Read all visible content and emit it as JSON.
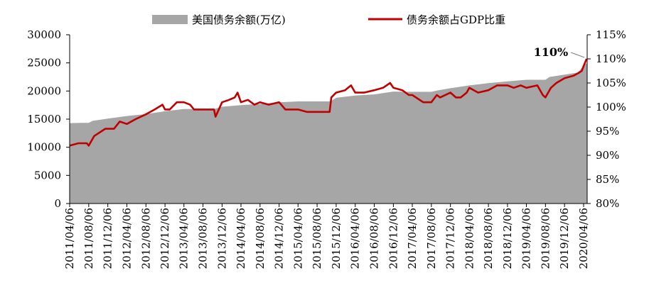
{
  "chart_data": {
    "type": "area",
    "title": "",
    "legend": {
      "placement": "top",
      "items": [
        {
          "label": "美国债务余额(万亿)",
          "color": "#a6a6a6",
          "kind": "area"
        },
        {
          "label": "债务余额占GDP比重",
          "color": "#c00000",
          "kind": "line"
        }
      ]
    },
    "y_left": {
      "ticks": [
        "30000",
        "25000",
        "20000",
        "15000",
        "10000",
        "5000",
        "0"
      ],
      "ylim": [
        0,
        30000
      ]
    },
    "y_right": {
      "ticks": [
        "115%",
        "110%",
        "105%",
        "100%",
        "95%",
        "90%",
        "85%",
        "80%"
      ],
      "ylim": [
        80,
        115
      ]
    },
    "x_tick_labels": [
      "2011/04/06",
      "2011/08/06",
      "2011/12/06",
      "2012/04/06",
      "2012/08/06",
      "2012/12/06",
      "2013/04/06",
      "2013/08/06",
      "2013/12/06",
      "2014/04/06",
      "2014/08/06",
      "2014/12/06",
      "2015/04/06",
      "2015/08/06",
      "2015/12/06",
      "2016/04/06",
      "2016/08/06",
      "2016/12/06",
      "2017/04/06",
      "2017/08/06",
      "2017/12/06",
      "2018/04/06",
      "2018/08/06",
      "2018/12/06",
      "2019/04/06",
      "2019/08/06",
      "2019/12/06",
      "2020/04/06"
    ],
    "series": [
      {
        "name": "美国债务余额(万亿)",
        "axis": "left",
        "color": "#a6a6a6",
        "x": [
          "2011/04/06",
          "2011/06/15",
          "2011/08/06",
          "2011/09/01",
          "2011/12/06",
          "2012/04/06",
          "2012/08/06",
          "2012/12/06",
          "2013/04/06",
          "2013/08/06",
          "2013/10/15",
          "2013/12/06",
          "2014/04/06",
          "2014/08/06",
          "2014/12/06",
          "2015/04/06",
          "2015/08/06",
          "2015/11/01",
          "2015/12/06",
          "2016/04/06",
          "2016/08/06",
          "2016/12/06",
          "2017/04/06",
          "2017/08/06",
          "2017/09/15",
          "2017/12/06",
          "2018/04/06",
          "2018/08/06",
          "2018/12/06",
          "2019/04/06",
          "2019/08/06",
          "2019/09/01",
          "2019/12/06",
          "2020/03/01",
          "2020/04/06",
          "2020/05/01"
        ],
        "values": [
          14300,
          14340,
          14340,
          14700,
          15100,
          15550,
          15900,
          16400,
          16800,
          16800,
          16800,
          17200,
          17500,
          17700,
          18000,
          18150,
          18150,
          18150,
          18800,
          19200,
          19400,
          19900,
          19850,
          19850,
          20100,
          20500,
          21000,
          21400,
          21700,
          22000,
          22000,
          22500,
          22900,
          23300,
          24500,
          25000
        ]
      },
      {
        "name": "债务余额占GDP比重",
        "axis": "right",
        "color": "#c00000",
        "x": [
          "2011/04/06",
          "2011/06/01",
          "2011/07/25",
          "2011/08/06",
          "2011/09/10",
          "2011/11/20",
          "2012/01/15",
          "2012/02/20",
          "2012/04/06",
          "2012/06/01",
          "2012/08/06",
          "2012/10/01",
          "2012/11/20",
          "2012/12/06",
          "2013/01/05",
          "2013/02/20",
          "2013/04/06",
          "2013/05/15",
          "2013/06/10",
          "2013/08/06",
          "2013/10/15",
          "2013/10/25",
          "2013/12/06",
          "2014/01/20",
          "2014/02/25",
          "2014/03/15",
          "2014/04/06",
          "2014/05/20",
          "2014/07/01",
          "2014/08/06",
          "2014/10/01",
          "2014/12/06",
          "2015/01/15",
          "2015/03/01",
          "2015/04/06",
          "2015/06/01",
          "2015/08/06",
          "2015/10/25",
          "2015/11/05",
          "2015/12/06",
          "2016/02/01",
          "2016/03/10",
          "2016/04/06",
          "2016/06/01",
          "2016/08/06",
          "2016/10/01",
          "2016/11/15",
          "2016/12/06",
          "2017/02/01",
          "2017/03/15",
          "2017/04/06",
          "2017/06/15",
          "2017/08/06",
          "2017/09/10",
          "2017/10/01",
          "2017/12/06",
          "2018/01/10",
          "2018/02/10",
          "2018/03/20",
          "2018/04/06",
          "2018/06/01",
          "2018/08/06",
          "2018/10/01",
          "2018/12/06",
          "2019/01/15",
          "2019/03/01",
          "2019/04/06",
          "2019/06/15",
          "2019/07/20",
          "2019/08/06",
          "2019/09/10",
          "2019/10/15",
          "2019/12/06",
          "2020/02/01",
          "2020/03/01",
          "2020/03/25",
          "2020/04/06",
          "2020/04/25"
        ],
        "values": [
          92.0,
          92.5,
          92.5,
          92.0,
          94.0,
          95.5,
          95.5,
          97.0,
          96.5,
          97.5,
          98.5,
          99.5,
          100.5,
          99.5,
          99.5,
          101.0,
          101.0,
          100.5,
          99.5,
          99.5,
          99.5,
          98.0,
          101.0,
          101.5,
          102.0,
          103.0,
          101.0,
          101.5,
          100.5,
          101.0,
          100.5,
          101.0,
          99.5,
          99.5,
          99.5,
          99.0,
          99.0,
          99.0,
          102.0,
          103.0,
          103.5,
          104.5,
          103.0,
          103.0,
          103.5,
          104.0,
          105.0,
          104.0,
          103.5,
          102.5,
          102.5,
          101.0,
          101.0,
          102.5,
          102.0,
          103.0,
          102.0,
          102.0,
          103.0,
          104.0,
          103.0,
          103.5,
          104.5,
          104.5,
          104.0,
          104.5,
          104.0,
          104.5,
          102.5,
          102.0,
          104.0,
          105.0,
          106.0,
          106.5,
          107.0,
          107.5,
          108.5,
          110.0
        ]
      }
    ],
    "annotations": [
      {
        "text": "110%",
        "at_x": "2020/04/25",
        "value": 110
      }
    ]
  }
}
